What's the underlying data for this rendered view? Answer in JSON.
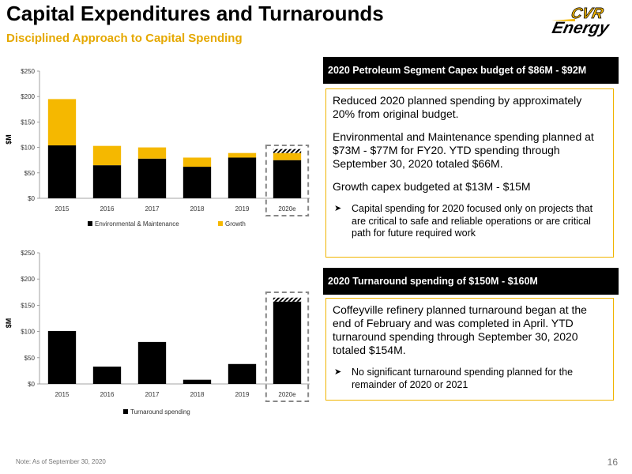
{
  "header": {
    "title": "Capital Expenditures and Turnarounds",
    "subtitle": "Disciplined Approach to Capital Spending",
    "logo_top": "CVR",
    "logo_bottom": "Energy"
  },
  "colors": {
    "gold": "#f5b800",
    "black": "#000000",
    "accent_text": "#e5a800"
  },
  "chart_data": [
    {
      "type": "bar",
      "stacked": true,
      "categories": [
        "2015",
        "2016",
        "2017",
        "2018",
        "2019",
        "2020e"
      ],
      "series": [
        {
          "name": "Environmental & Maintenance",
          "values": [
            104,
            65,
            78,
            62,
            80,
            75
          ]
        },
        {
          "name": "Growth",
          "values": [
            91,
            38,
            22,
            18,
            9,
            14
          ]
        }
      ],
      "ylabel": "$M",
      "ylim": [
        0,
        250
      ],
      "yticks": [
        "$0",
        "$50",
        "$100",
        "$150",
        "$200",
        "$250"
      ],
      "yticks_values": [
        0,
        50,
        100,
        150,
        200,
        250
      ],
      "legend": "bottom",
      "highlight": "2020e"
    },
    {
      "type": "bar",
      "categories": [
        "2015",
        "2016",
        "2017",
        "2018",
        "2019",
        "2020e"
      ],
      "series": [
        {
          "name": "Turnaround spending",
          "values": [
            101,
            33,
            80,
            8,
            38,
            157
          ]
        }
      ],
      "ylabel": "$M",
      "ylim": [
        0,
        250
      ],
      "yticks": [
        "$0",
        "$50",
        "$100",
        "$150",
        "$200",
        "$250"
      ],
      "yticks_values": [
        0,
        50,
        100,
        150,
        200,
        250
      ],
      "legend": "bottom",
      "highlight": "2020e"
    }
  ],
  "panels": {
    "capex": {
      "header": "2020 Petroleum Segment Capex budget of $86M - $92M",
      "paragraphs": [
        "Reduced 2020 planned spending by approximately 20% from original budget.",
        "Environmental and Maintenance spending planned at $73M - $77M for FY20. YTD spending through September 30, 2020 totaled $66M.",
        "Growth capex budgeted at $13M - $15M"
      ],
      "bullet": "Capital spending for 2020 focused only on projects that are critical to safe and reliable operations or are critical path for future required work"
    },
    "turnaround": {
      "header": "2020 Turnaround spending of $150M - $160M",
      "paragraphs": [
        "Coffeyville refinery planned turnaround began at the end of February and was completed in April. YTD turnaround spending through September 30, 2020 totaled $154M."
      ],
      "bullet": "No significant turnaround spending planned for the remainder of 2020 or 2021"
    }
  },
  "footer": {
    "note": "Note:  As of September 30, 2020",
    "page": "16"
  }
}
